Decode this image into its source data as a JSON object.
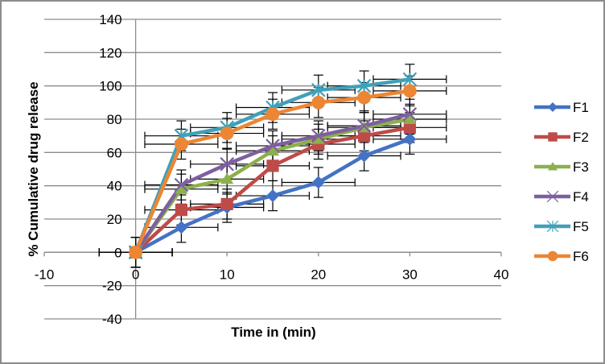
{
  "chart_data": {
    "type": "line",
    "title": "",
    "xlabel": "Time in (min)",
    "ylabel": "% Cumulative drug release",
    "xlim": [
      -10,
      40
    ],
    "ylim": [
      -40,
      140
    ],
    "x_ticks": [
      -10,
      0,
      10,
      20,
      30,
      40
    ],
    "y_ticks": [
      -40,
      -20,
      0,
      20,
      40,
      60,
      80,
      100,
      120,
      140
    ],
    "x_tick_labels": [
      "-10",
      "0",
      "10",
      "20",
      "30",
      "40"
    ],
    "y_tick_labels": [
      "-40",
      "-20",
      "0",
      "20",
      "40",
      "60",
      "80",
      "100",
      "120",
      "140"
    ],
    "grid": "horizontal",
    "legend_position": "right",
    "x": [
      0,
      5,
      10,
      15,
      20,
      25,
      30
    ],
    "x_error": 4,
    "y_error": 9,
    "series": [
      {
        "name": "F1",
        "color": "#4472c4",
        "marker": "diamond",
        "values": [
          0,
          15,
          27,
          34,
          42,
          58,
          68
        ]
      },
      {
        "name": "F2",
        "color": "#be4b48",
        "marker": "square",
        "values": [
          0,
          25.5,
          29,
          52,
          65,
          70,
          75
        ]
      },
      {
        "name": "F3",
        "color": "#8cb04c",
        "marker": "triangle",
        "values": [
          0,
          38,
          44,
          61,
          68,
          75,
          80
        ]
      },
      {
        "name": "F4",
        "color": "#7d5fa0",
        "marker": "x",
        "values": [
          0,
          40.5,
          53,
          64,
          70,
          76,
          83
        ]
      },
      {
        "name": "F5",
        "color": "#40a0b8",
        "marker": "star",
        "values": [
          0,
          70,
          75,
          87,
          97.5,
          100,
          104
        ]
      },
      {
        "name": "F6",
        "color": "#ec8634",
        "marker": "circle",
        "values": [
          0,
          65,
          71.5,
          83,
          90,
          93,
          97
        ]
      }
    ]
  }
}
